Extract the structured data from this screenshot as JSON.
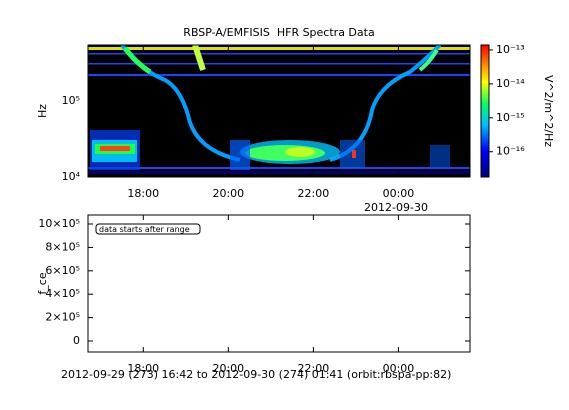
{
  "chart_data": [
    {
      "type": "spectrogram",
      "title": "RBSP-A/EMFISIS  HFR Spectra Data",
      "ylabel": "Hz",
      "xlim": [
        16.7,
        25.683
      ],
      "xticks": [
        {
          "value": 18,
          "label": "18:00"
        },
        {
          "value": 20,
          "label": "20:00"
        },
        {
          "value": 22,
          "label": "22:00"
        },
        {
          "value": 24,
          "label": "00:00"
        }
      ],
      "x_annotation": "2012-09-30",
      "ylim": [
        10000,
        546000
      ],
      "ylog": true,
      "yticks": [
        {
          "value": 10000,
          "label": "10⁴"
        },
        {
          "value": 100000,
          "label": "10⁵"
        }
      ],
      "zlabel": "V^2/m^2/Hz",
      "zlim": [
        1.8e-17,
        1.4e-13
      ],
      "zlog": true,
      "zticks": [
        {
          "value": 1e-13,
          "label": "10⁻¹³"
        },
        {
          "value": 1e-14,
          "label": "10⁻¹⁴"
        },
        {
          "value": 1e-15,
          "label": "10⁻¹⁵"
        },
        {
          "value": 1e-16,
          "label": "10⁻¹⁶"
        }
      ]
    },
    {
      "type": "line",
      "ylabel": "f_ce",
      "xlim": [
        16.7,
        25.683
      ],
      "xticks": [
        {
          "value": 18,
          "label": "18:00"
        },
        {
          "value": 20,
          "label": "20:00"
        },
        {
          "value": 22,
          "label": "22:00"
        },
        {
          "value": 24,
          "label": "00:00"
        }
      ],
      "ylim": [
        -94000,
        1077000
      ],
      "yticks": [
        0,
        {
          "value": 200000,
          "label": "2×10⁵"
        },
        {
          "value": 400000,
          "label": "4×10⁵"
        },
        {
          "value": 600000,
          "label": "6×10⁵"
        },
        {
          "value": 800000,
          "label": "8×10⁵"
        },
        {
          "value": 1000000,
          "label": "10×10⁵"
        }
      ],
      "annotation": "data starts after range"
    }
  ],
  "footer": "2012-09-29 (273) 16:42 to 2012-09-30 (274) 01:41 (orbit:rbspa-pp:82)"
}
